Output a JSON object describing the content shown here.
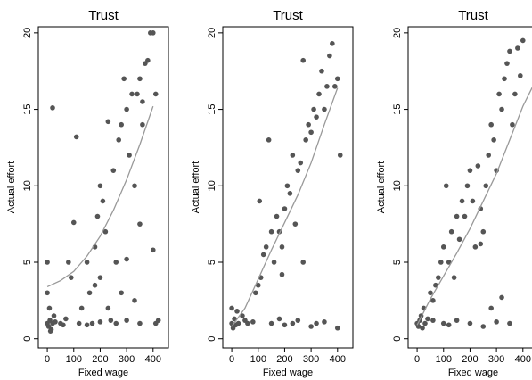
{
  "chart_data": [
    {
      "type": "scatter",
      "title": "Trust",
      "xlabel": "Fixed wage",
      "ylabel": "Actual effort",
      "x": [
        0,
        5,
        10,
        15,
        20,
        25,
        8,
        12,
        30,
        0,
        0,
        20,
        50,
        60,
        70,
        80,
        90,
        100,
        110,
        120,
        130,
        150,
        160,
        170,
        180,
        190,
        200,
        210,
        220,
        230,
        240,
        250,
        260,
        270,
        280,
        290,
        300,
        310,
        320,
        330,
        340,
        350,
        360,
        370,
        380,
        390,
        400,
        410,
        400,
        350,
        300,
        260,
        200,
        150,
        420,
        330,
        280,
        230,
        350,
        360,
        200,
        180,
        300,
        410
      ],
      "values": [
        1,
        0.8,
        1.2,
        0.6,
        1,
        1.5,
        2,
        0.5,
        1.1,
        3,
        5,
        15.1,
        1,
        0.9,
        1.3,
        5,
        4,
        7.6,
        13.2,
        1,
        2,
        5,
        3,
        1,
        6,
        8,
        10,
        9,
        7,
        14.2,
        1.2,
        11,
        5,
        13,
        14,
        17,
        15,
        12,
        16,
        10,
        16,
        17,
        15.5,
        18,
        18.2,
        20,
        20,
        16,
        5.8,
        1,
        1.2,
        1,
        1.1,
        0.9,
        1.2,
        2.5,
        3,
        2,
        7.5,
        14,
        4,
        3.5,
        5.2,
        1
      ],
      "color": "#555555",
      "fit_x": [
        0,
        50,
        100,
        150,
        200,
        250,
        300,
        350,
        400
      ],
      "fit_values": [
        3.4,
        3.8,
        4.4,
        5.4,
        6.7,
        8.4,
        10.4,
        12.7,
        15.2
      ],
      "fit_color": "#999999",
      "xlim": [
        -34,
        458
      ],
      "ylim": [
        -0.6,
        20.4
      ],
      "xticks": [
        0,
        100,
        200,
        300,
        400
      ],
      "yticks": [
        0,
        5,
        10,
        15,
        20
      ]
    },
    {
      "type": "scatter",
      "title": "Trust",
      "xlabel": "Fixed wage",
      "ylabel": "Actual effort",
      "x": [
        0,
        5,
        10,
        15,
        20,
        0,
        25,
        40,
        50,
        60,
        80,
        90,
        100,
        105,
        110,
        130,
        140,
        150,
        160,
        170,
        180,
        190,
        200,
        210,
        220,
        230,
        240,
        250,
        260,
        270,
        280,
        290,
        300,
        310,
        320,
        330,
        340,
        350,
        360,
        370,
        380,
        390,
        400,
        410,
        150,
        200,
        250,
        300,
        350,
        400,
        180,
        230,
        270,
        320,
        120,
        190
      ],
      "values": [
        1,
        0.7,
        1.3,
        0.9,
        1.8,
        2,
        1,
        1.5,
        1.2,
        1,
        1.1,
        3,
        3.5,
        9,
        4,
        6,
        13,
        7,
        5,
        8,
        7,
        6,
        8.5,
        10,
        9.5,
        12,
        7.5,
        11,
        11.5,
        18.2,
        13,
        14,
        13.5,
        15,
        14.5,
        16,
        17.5,
        15,
        16.5,
        18.5,
        19.3,
        16.5,
        17,
        12,
        1,
        0.9,
        1.2,
        0.8,
        1.1,
        0.7,
        1.3,
        1,
        5,
        1,
        5.5,
        4.2
      ],
      "color": "#555555",
      "fit_x": [
        0,
        50,
        100,
        150,
        200,
        250,
        300,
        350,
        400
      ],
      "fit_values": [
        0.8,
        2,
        3.9,
        5.8,
        7.6,
        9.4,
        11.5,
        14,
        16.4
      ],
      "fit_color": "#999999",
      "xlim": [
        -34,
        458
      ],
      "ylim": [
        -0.6,
        20.4
      ],
      "xticks": [
        0,
        100,
        200,
        300,
        400
      ],
      "yticks": [
        0,
        5,
        10,
        15,
        20
      ]
    },
    {
      "type": "scatter",
      "title": "Trust",
      "xlabel": "Fixed wage",
      "ylabel": "Actual effort",
      "x": [
        0,
        5,
        10,
        15,
        20,
        25,
        30,
        40,
        50,
        60,
        70,
        80,
        90,
        100,
        110,
        120,
        130,
        140,
        150,
        160,
        170,
        180,
        190,
        200,
        210,
        220,
        230,
        240,
        250,
        260,
        270,
        280,
        290,
        300,
        310,
        320,
        330,
        340,
        350,
        360,
        370,
        380,
        390,
        400,
        150,
        200,
        250,
        300,
        350,
        100,
        320,
        280,
        240,
        120,
        60
      ],
      "values": [
        1,
        0.8,
        1.2,
        1.5,
        0.7,
        2,
        1,
        1.3,
        3,
        2.5,
        3.5,
        4,
        5,
        6,
        10,
        5,
        7,
        4,
        8,
        6.5,
        9,
        8,
        10,
        11,
        9,
        6,
        11.3,
        8.5,
        7,
        10,
        12,
        14,
        13,
        11,
        16,
        15,
        17,
        18,
        18.8,
        14,
        16,
        19,
        17.2,
        19.5,
        1.2,
        1,
        0.8,
        1.1,
        1,
        1,
        2.7,
        2,
        6.2,
        0.9,
        1.2
      ],
      "color": "#555555",
      "fit_x": [
        0,
        50,
        100,
        150,
        200,
        250,
        300,
        350,
        400,
        440
      ],
      "fit_values": [
        0.9,
        2.6,
        4.1,
        5.6,
        7.2,
        9,
        10.8,
        13,
        15.2,
        16.6
      ],
      "fit_color": "#999999",
      "xlim": [
        -34,
        458
      ],
      "ylim": [
        -0.6,
        20.4
      ],
      "xticks": [
        0,
        100,
        200,
        300,
        400
      ],
      "yticks": [
        0,
        5,
        10,
        15,
        20
      ]
    }
  ]
}
